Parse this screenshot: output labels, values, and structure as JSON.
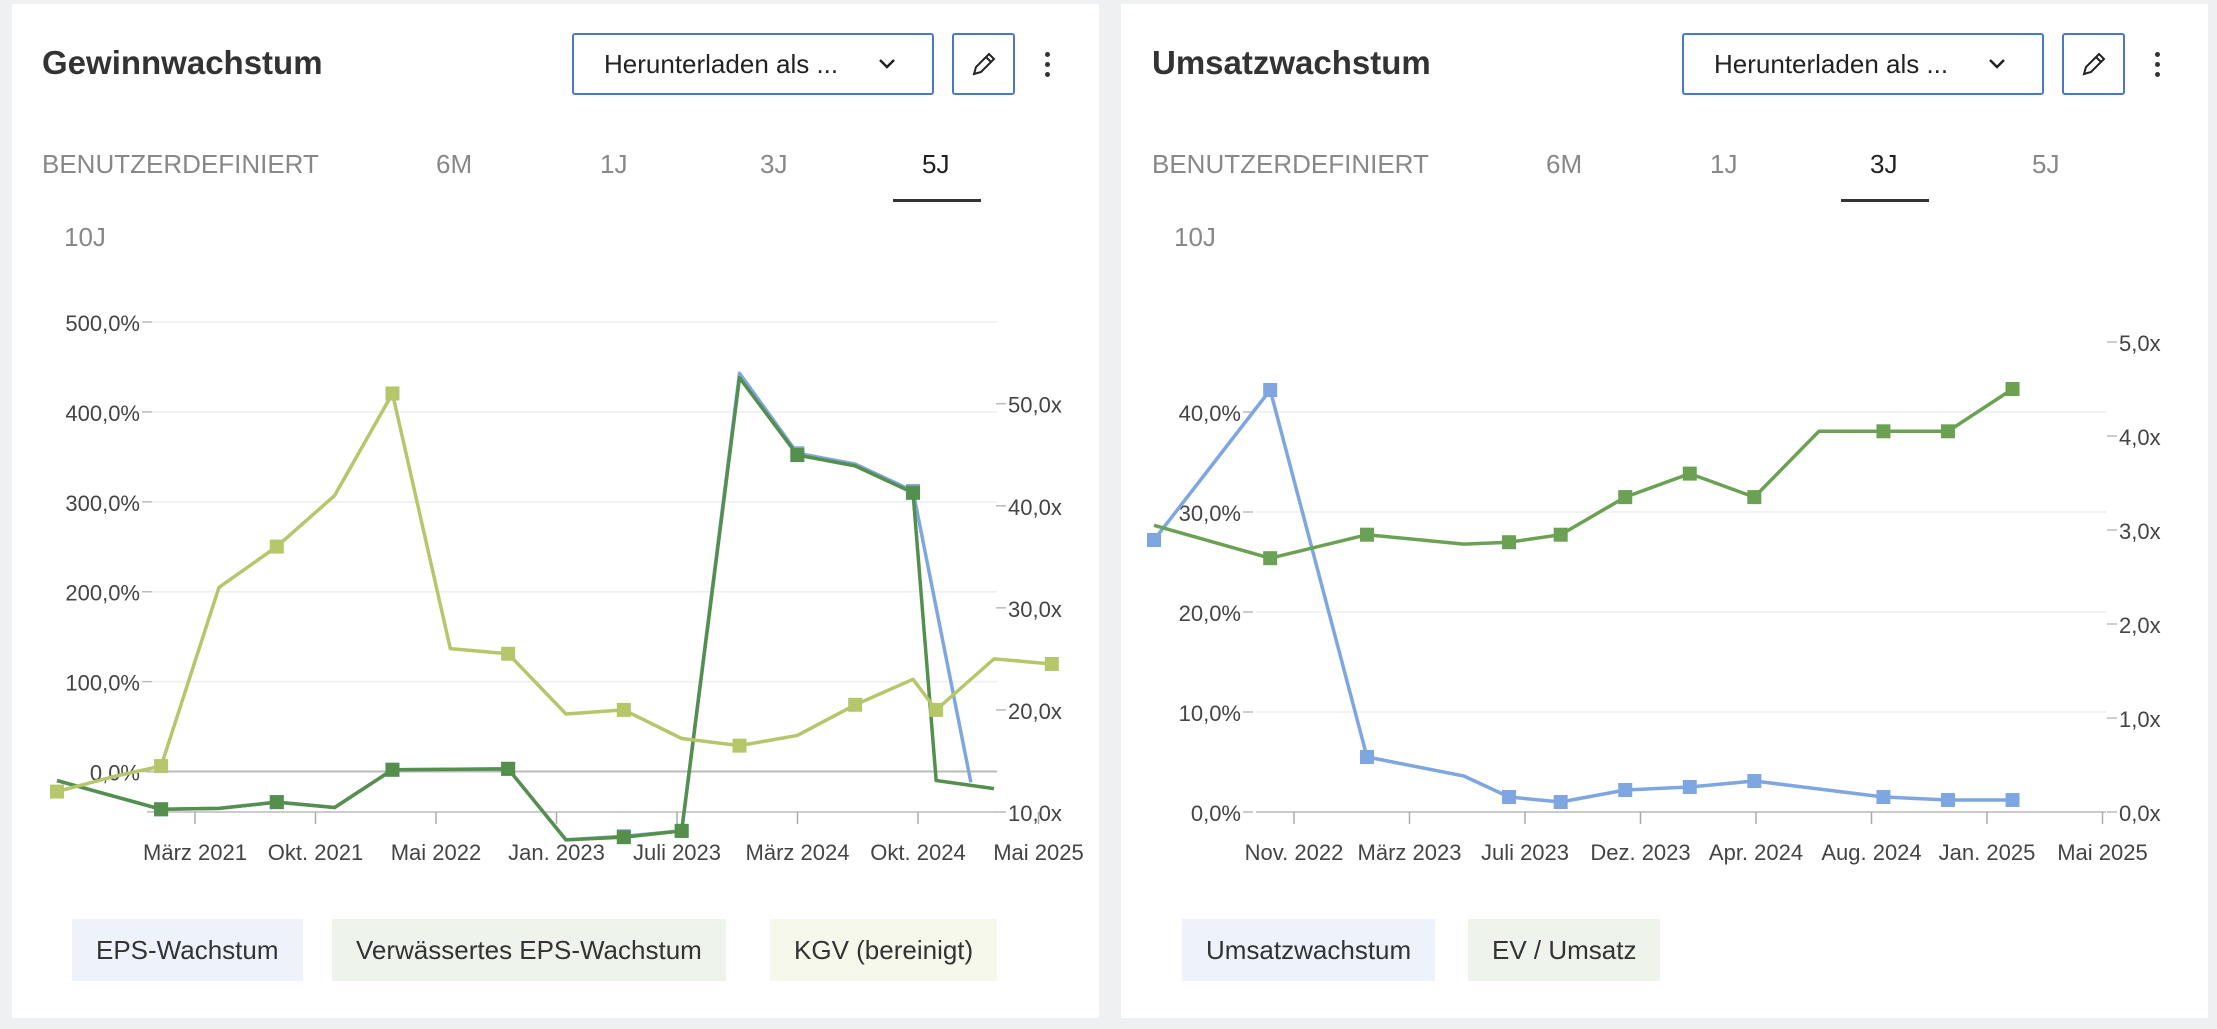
{
  "panels": [
    {
      "title": "Gewinnwachstum",
      "download_label": "Herunterladen als ...",
      "tabs": [
        "BENUTZERDEFINIERT",
        "6M",
        "1J",
        "3J",
        "5J",
        "10J"
      ],
      "active_tab": "5J",
      "legend": [
        "EPS-Wachstum",
        "Verwässertes EPS-Wachstum",
        "KGV (bereinigt)"
      ]
    },
    {
      "title": "Umsatzwachstum",
      "download_label": "Herunterladen als ...",
      "tabs": [
        "BENUTZERDEFINIERT",
        "6M",
        "1J",
        "3J",
        "5J",
        "10J"
      ],
      "active_tab": "3J",
      "legend": [
        "Umsatzwachstum",
        "EV / Umsatz"
      ]
    }
  ],
  "chart_data": [
    {
      "type": "line",
      "x_ticks": [
        "März 2021",
        "Okt. 2021",
        "Mai 2022",
        "Jan. 2023",
        "Juli 2023",
        "März 2024",
        "Okt. 2024",
        "Mai 2025"
      ],
      "y_left": {
        "min": -45,
        "max": 500,
        "ticks": [
          0,
          100,
          200,
          300,
          400,
          500
        ],
        "tick_labels": [
          "0,0%",
          "100,0%",
          "200,0%",
          "300,0%",
          "400,0%",
          "500,0%"
        ]
      },
      "y_right": {
        "min": 10,
        "max": 58,
        "ticks": [
          10,
          20,
          30,
          40,
          50
        ],
        "tick_labels": [
          "10,0x",
          "20,0x",
          "30,0x",
          "40,0x",
          "50,0x"
        ]
      },
      "x_range": [
        0,
        16.2
      ],
      "grid": true,
      "legend_position": "bottom",
      "series": [
        {
          "name": "EPS-Wachstum",
          "axis": "left",
          "color": "#7ea6e0",
          "x": [
            0,
            1.8,
            2.8,
            3.8,
            4.8,
            5.8,
            7.8,
            8.8,
            9.8,
            10.8,
            11.8,
            12.8,
            13.8,
            14.8,
            15.8
          ],
          "y": [
            -10,
            -42,
            -41,
            -34,
            -40,
            2,
            3,
            -76,
            -72,
            -66,
            443,
            354,
            342,
            312,
            -12
          ],
          "markers": [
            false,
            true,
            false,
            true,
            false,
            true,
            true,
            false,
            true,
            true,
            false,
            true,
            false,
            true,
            false
          ]
        },
        {
          "name": "Verwässertes EPS-Wachstum",
          "axis": "left",
          "color": "#548f4d",
          "x": [
            0,
            1.8,
            2.8,
            3.8,
            4.8,
            5.8,
            7.8,
            8.8,
            9.8,
            10.8,
            11.8,
            12.8,
            13.8,
            14.8,
            15.2,
            16.2
          ],
          "y": [
            -10,
            -42,
            -41,
            -34,
            -40,
            2,
            3,
            -76,
            -73,
            -66,
            438,
            352,
            340,
            310,
            -10,
            -19
          ],
          "markers": [
            false,
            true,
            false,
            true,
            false,
            true,
            true,
            false,
            true,
            true,
            false,
            true,
            false,
            true,
            false,
            false
          ]
        },
        {
          "name": "KGV (bereinigt)",
          "axis": "right",
          "color": "#b5c76a",
          "x": [
            0,
            1,
            1.8,
            2.8,
            3.8,
            4.8,
            5.8,
            6.8,
            7.8,
            8.8,
            9.8,
            10.8,
            11.8,
            12.8,
            13.8,
            14.8,
            15.2,
            16.2,
            17.2
          ],
          "y": [
            12,
            13.5,
            14.5,
            32,
            36,
            41,
            51,
            26,
            25.5,
            19.6,
            20,
            17.2,
            16.5,
            17.5,
            20.5,
            23,
            20,
            25,
            24.5
          ],
          "markers": [
            true,
            false,
            true,
            false,
            true,
            false,
            true,
            false,
            true,
            false,
            true,
            false,
            true,
            false,
            true,
            false,
            true,
            false,
            true
          ]
        }
      ]
    },
    {
      "type": "line",
      "x_ticks": [
        "Nov. 2022",
        "März 2023",
        "Juli 2023",
        "Dez. 2023",
        "Apr. 2024",
        "Aug. 2024",
        "Jan. 2025",
        "Mai 2025"
      ],
      "y_left": {
        "min": 0,
        "max": 47,
        "ticks": [
          0,
          10,
          20,
          30,
          40
        ],
        "tick_labels": [
          "0,0%",
          "10,0%",
          "20,0%",
          "30,0%",
          "40,0%"
        ]
      },
      "y_right": {
        "min": 0,
        "max": 5,
        "ticks": [
          0,
          1,
          2,
          3,
          4,
          5
        ],
        "tick_labels": [
          "0,0x",
          "1,0x",
          "2,0x",
          "3,0x",
          "4,0x",
          "5,0x"
        ]
      },
      "x_range": [
        0,
        14.5
      ],
      "grid": true,
      "legend_position": "bottom",
      "series": [
        {
          "name": "Umsatzwachstum",
          "axis": "left",
          "color": "#7ea6e0",
          "x": [
            0,
            1.8,
            3.3,
            4.8,
            5.5,
            6.3,
            7.3,
            8.3,
            9.3,
            10.3,
            11.3,
            12.3,
            13.3
          ],
          "y": [
            27.2,
            42.2,
            5.5,
            3.6,
            1.5,
            1.0,
            2.2,
            2.5,
            3.1,
            2.3,
            1.5,
            1.2,
            1.2
          ],
          "markers": [
            true,
            true,
            true,
            false,
            true,
            true,
            true,
            true,
            true,
            false,
            true,
            true,
            true
          ]
        },
        {
          "name": "EV / Umsatz",
          "axis": "right",
          "color": "#6aa152",
          "x": [
            0,
            1.8,
            3.3,
            4.8,
            5.5,
            6.3,
            7.3,
            8.3,
            9.3,
            10.3,
            11.3,
            12.3,
            13.3
          ],
          "y": [
            3.05,
            2.7,
            2.95,
            2.85,
            2.87,
            2.95,
            3.35,
            3.6,
            3.35,
            4.05,
            4.05,
            4.05,
            4.5
          ],
          "markers": [
            false,
            true,
            true,
            false,
            true,
            true,
            true,
            true,
            true,
            false,
            true,
            true,
            true
          ]
        }
      ]
    }
  ]
}
